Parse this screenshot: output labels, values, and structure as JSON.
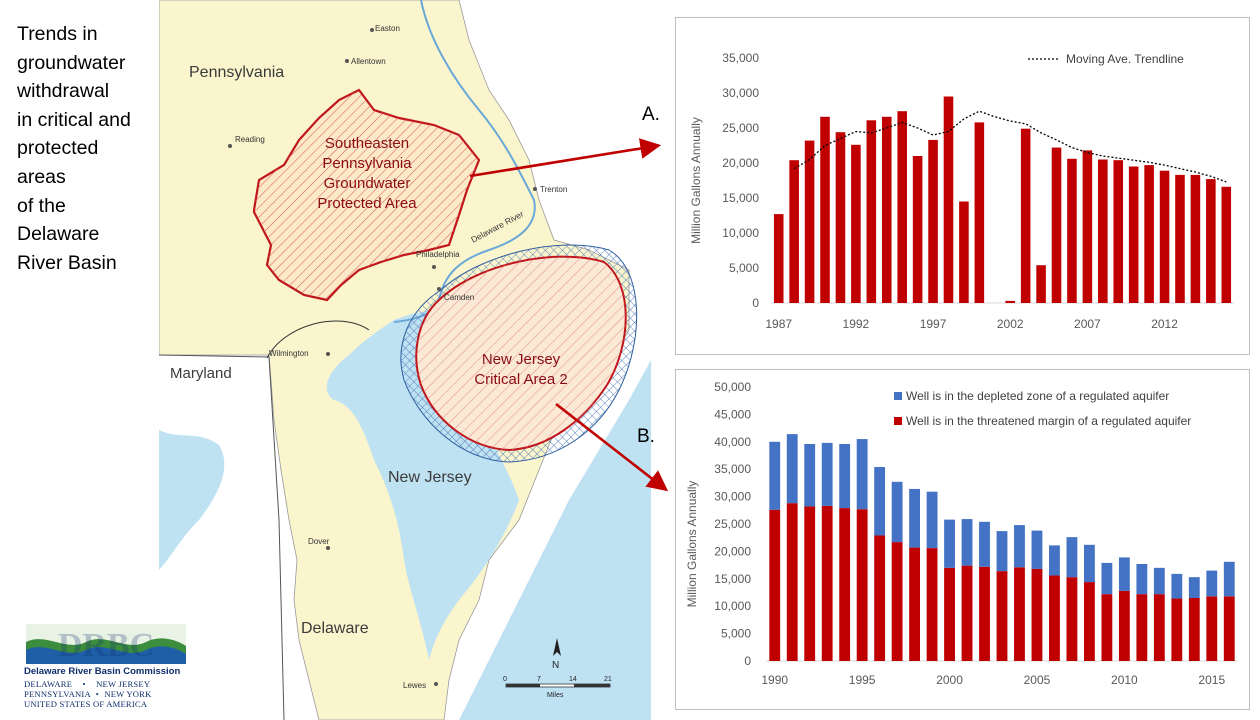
{
  "title_lines": [
    "Trends in",
    "groundwater",
    "withdrawal",
    "in critical and",
    "protected",
    "areas",
    "of the",
    "Delaware",
    "River Basin"
  ],
  "map": {
    "states": [
      "Pennsylvania",
      "Maryland",
      "New Jersey",
      "Delaware"
    ],
    "cities": [
      "Easton",
      "Allentown",
      "Reading",
      "Trenton",
      "Philadelphia",
      "Camden",
      "Wilmington",
      "Dover",
      "Lewes"
    ],
    "river_label": "Delaware River",
    "pa_area_label": [
      "Southeasten",
      "Pennsylvania",
      "Groundwater",
      "Protected Area"
    ],
    "nj_area_label": [
      "New Jersey",
      "Critical Area 2"
    ],
    "scale_ticks": [
      "0",
      "7",
      "14",
      "21"
    ],
    "scale_unit": "Miles",
    "north_label": "N",
    "colors": {
      "water": "#bfe2f2",
      "land": "#faf5cd",
      "outside_land": "#ffffff",
      "pa_outline": "#c0161c",
      "nj_hatch": "#2d5d9f"
    }
  },
  "arrow_labels": {
    "a": "A.",
    "b": "B."
  },
  "logo": {
    "mark": "DRBC",
    "name": "Delaware River Basin Commission",
    "line1_left": "DELAWARE",
    "line1_right": "NEW JERSEY",
    "line2_left": "PENNSYLVANIA",
    "line2_right": "NEW YORK",
    "line3": "UNITED STATES OF AMERICA"
  },
  "chart_data": [
    {
      "type": "bar",
      "ylabel": "Million Gallons Annually",
      "ylim": [
        0,
        35000
      ],
      "yticks": [
        0,
        5000,
        10000,
        15000,
        20000,
        25000,
        30000,
        35000
      ],
      "ytick_labels": [
        "0",
        "5,000",
        "10,000",
        "15,000",
        "20,000",
        "25,000",
        "30,000",
        "35,000"
      ],
      "xticks": [
        1987,
        1992,
        1997,
        2002,
        2007,
        2012
      ],
      "x": [
        1987,
        1988,
        1989,
        1990,
        1991,
        1992,
        1993,
        1994,
        1995,
        1996,
        1997,
        1998,
        1999,
        2000,
        2001,
        2002,
        2003,
        2004,
        2005,
        2006,
        2007,
        2008,
        2009,
        2010,
        2011,
        2012,
        2013,
        2014,
        2015,
        2016
      ],
      "values": [
        12700,
        20400,
        23200,
        26600,
        24400,
        22600,
        26100,
        26600,
        27400,
        21000,
        23300,
        29500,
        14500,
        25800,
        0,
        300,
        24900,
        5400,
        22200,
        20600,
        21800,
        20500,
        20400,
        19500,
        19700,
        18900,
        18300,
        18300,
        17700,
        16600
      ],
      "color": "#c00000",
      "trendline": {
        "name": "Moving Ave. Trendline",
        "x": [
          1988,
          1989,
          1990,
          1991,
          1992,
          1993,
          1994,
          1995,
          1996,
          1997,
          1998,
          1999,
          2000,
          2001,
          2002,
          2003,
          2004,
          2005,
          2006,
          2007,
          2008,
          2009,
          2010,
          2011,
          2012,
          2013,
          2014,
          2015,
          2016
        ],
        "y": [
          19200,
          20500,
          22500,
          23500,
          24500,
          24300,
          25000,
          25800,
          25000,
          24000,
          24500,
          26300,
          27400,
          26600,
          26000,
          25600,
          24300,
          23300,
          22200,
          21500,
          21000,
          20700,
          20400,
          20100,
          19700,
          19200,
          18700,
          18100,
          17300
        ]
      },
      "legend_position": "top-right",
      "grid": false
    },
    {
      "type": "bar",
      "stacked": true,
      "ylabel": "Million Gallons Annually",
      "ylim": [
        0,
        50000
      ],
      "yticks": [
        0,
        5000,
        10000,
        15000,
        20000,
        25000,
        30000,
        35000,
        40000,
        45000,
        50000
      ],
      "ytick_labels": [
        "0",
        "5,000",
        "10,000",
        "15,000",
        "20,000",
        "25,000",
        "30,000",
        "35,000",
        "40,000",
        "45,000",
        "50,000"
      ],
      "xticks": [
        1990,
        1995,
        2000,
        2005,
        2010,
        2015
      ],
      "x": [
        1990,
        1991,
        1992,
        1993,
        1994,
        1995,
        1996,
        1997,
        1998,
        1999,
        2000,
        2001,
        2002,
        2003,
        2004,
        2005,
        2006,
        2007,
        2008,
        2009,
        2010,
        2011,
        2012,
        2013,
        2014,
        2015,
        2016
      ],
      "series": [
        {
          "name": "Well is in the threatened margin of a regulated aquifer",
          "color": "#c00000",
          "values": [
            27600,
            28800,
            28200,
            28300,
            27900,
            27700,
            22900,
            21700,
            20700,
            20600,
            17000,
            17400,
            17200,
            16400,
            17100,
            16800,
            15600,
            15300,
            14400,
            12200,
            12800,
            12200,
            12200,
            11400,
            11500,
            11800,
            11800
          ]
        },
        {
          "name": "Well is in the depleted zone of a regulated aquifer",
          "color": "#4472c4",
          "values": [
            12400,
            12600,
            11400,
            11500,
            11700,
            12800,
            12500,
            11000,
            10700,
            10300,
            8800,
            8500,
            8200,
            7300,
            7700,
            7000,
            5500,
            7300,
            6800,
            5700,
            6100,
            5500,
            4800,
            4500,
            3800,
            4700,
            6300
          ]
        }
      ],
      "legend_position": "top",
      "grid": false
    }
  ]
}
